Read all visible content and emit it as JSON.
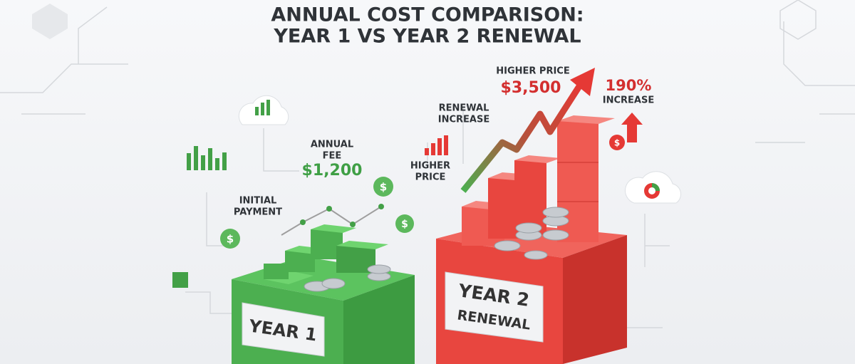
{
  "title": {
    "line1": "ANNUAL COST COMPARISON:",
    "line2": "YEAR 1 VS YEAR 2 RENEWAL"
  },
  "labels": {
    "higher_price_top": "HIGHER PRICE",
    "renewal_price": "$3,500",
    "increase_pct": "190%",
    "increase_word": "INCREASE",
    "renewal_increase": [
      "RENEWAL",
      "INCREASE"
    ],
    "higher_price_left": [
      "HIGHER",
      "PRICE"
    ],
    "annual_fee": [
      "ANNUAL",
      "FEE"
    ],
    "annual_fee_amount": "$1,200",
    "initial_payment": [
      "INITIAL",
      "PAYMENT"
    ]
  },
  "boxes": {
    "year1": "YEAR 1",
    "year2": [
      "YEAR 2",
      "RENEWAL"
    ]
  },
  "icon_symbol": "$"
}
